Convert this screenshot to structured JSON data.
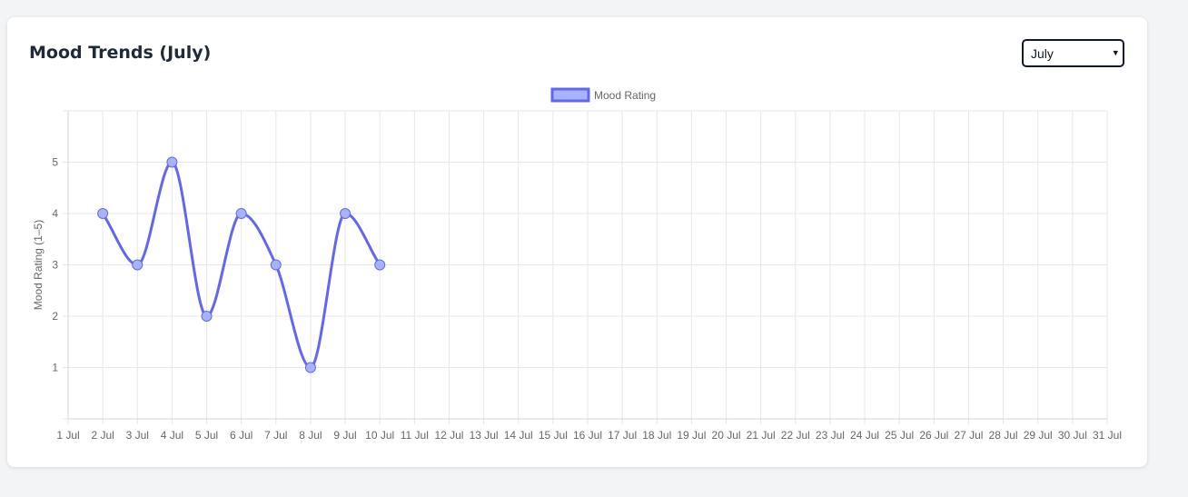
{
  "header": {
    "title": "Mood Trends (July)"
  },
  "month_select": {
    "selected": "July"
  },
  "colors": {
    "line": "#6366f1",
    "point_fill": "#a5b4fc",
    "grid": "#e5e7eb",
    "tick_text": "#666666"
  },
  "chart_data": {
    "type": "line",
    "title": "",
    "xlabel": "",
    "ylabel": "Mood Rating (1–5)",
    "categories": [
      "1 Jul",
      "2 Jul",
      "3 Jul",
      "4 Jul",
      "5 Jul",
      "6 Jul",
      "7 Jul",
      "8 Jul",
      "9 Jul",
      "10 Jul",
      "11 Jul",
      "12 Jul",
      "13 Jul",
      "14 Jul",
      "15 Jul",
      "16 Jul",
      "17 Jul",
      "18 Jul",
      "19 Jul",
      "20 Jul",
      "21 Jul",
      "22 Jul",
      "23 Jul",
      "24 Jul",
      "25 Jul",
      "26 Jul",
      "27 Jul",
      "28 Jul",
      "29 Jul",
      "30 Jul",
      "31 Jul"
    ],
    "series": [
      {
        "name": "Mood Rating",
        "values": [
          null,
          4,
          3,
          5,
          2,
          4,
          3,
          1,
          4,
          3,
          null,
          null,
          null,
          null,
          null,
          null,
          null,
          null,
          null,
          null,
          null,
          null,
          null,
          null,
          null,
          null,
          null,
          null,
          null,
          null,
          null
        ]
      }
    ],
    "yticks": [
      1,
      2,
      3,
      4,
      5
    ],
    "ylim": [
      0,
      6
    ],
    "grid": true,
    "legend_position": "top-center"
  }
}
